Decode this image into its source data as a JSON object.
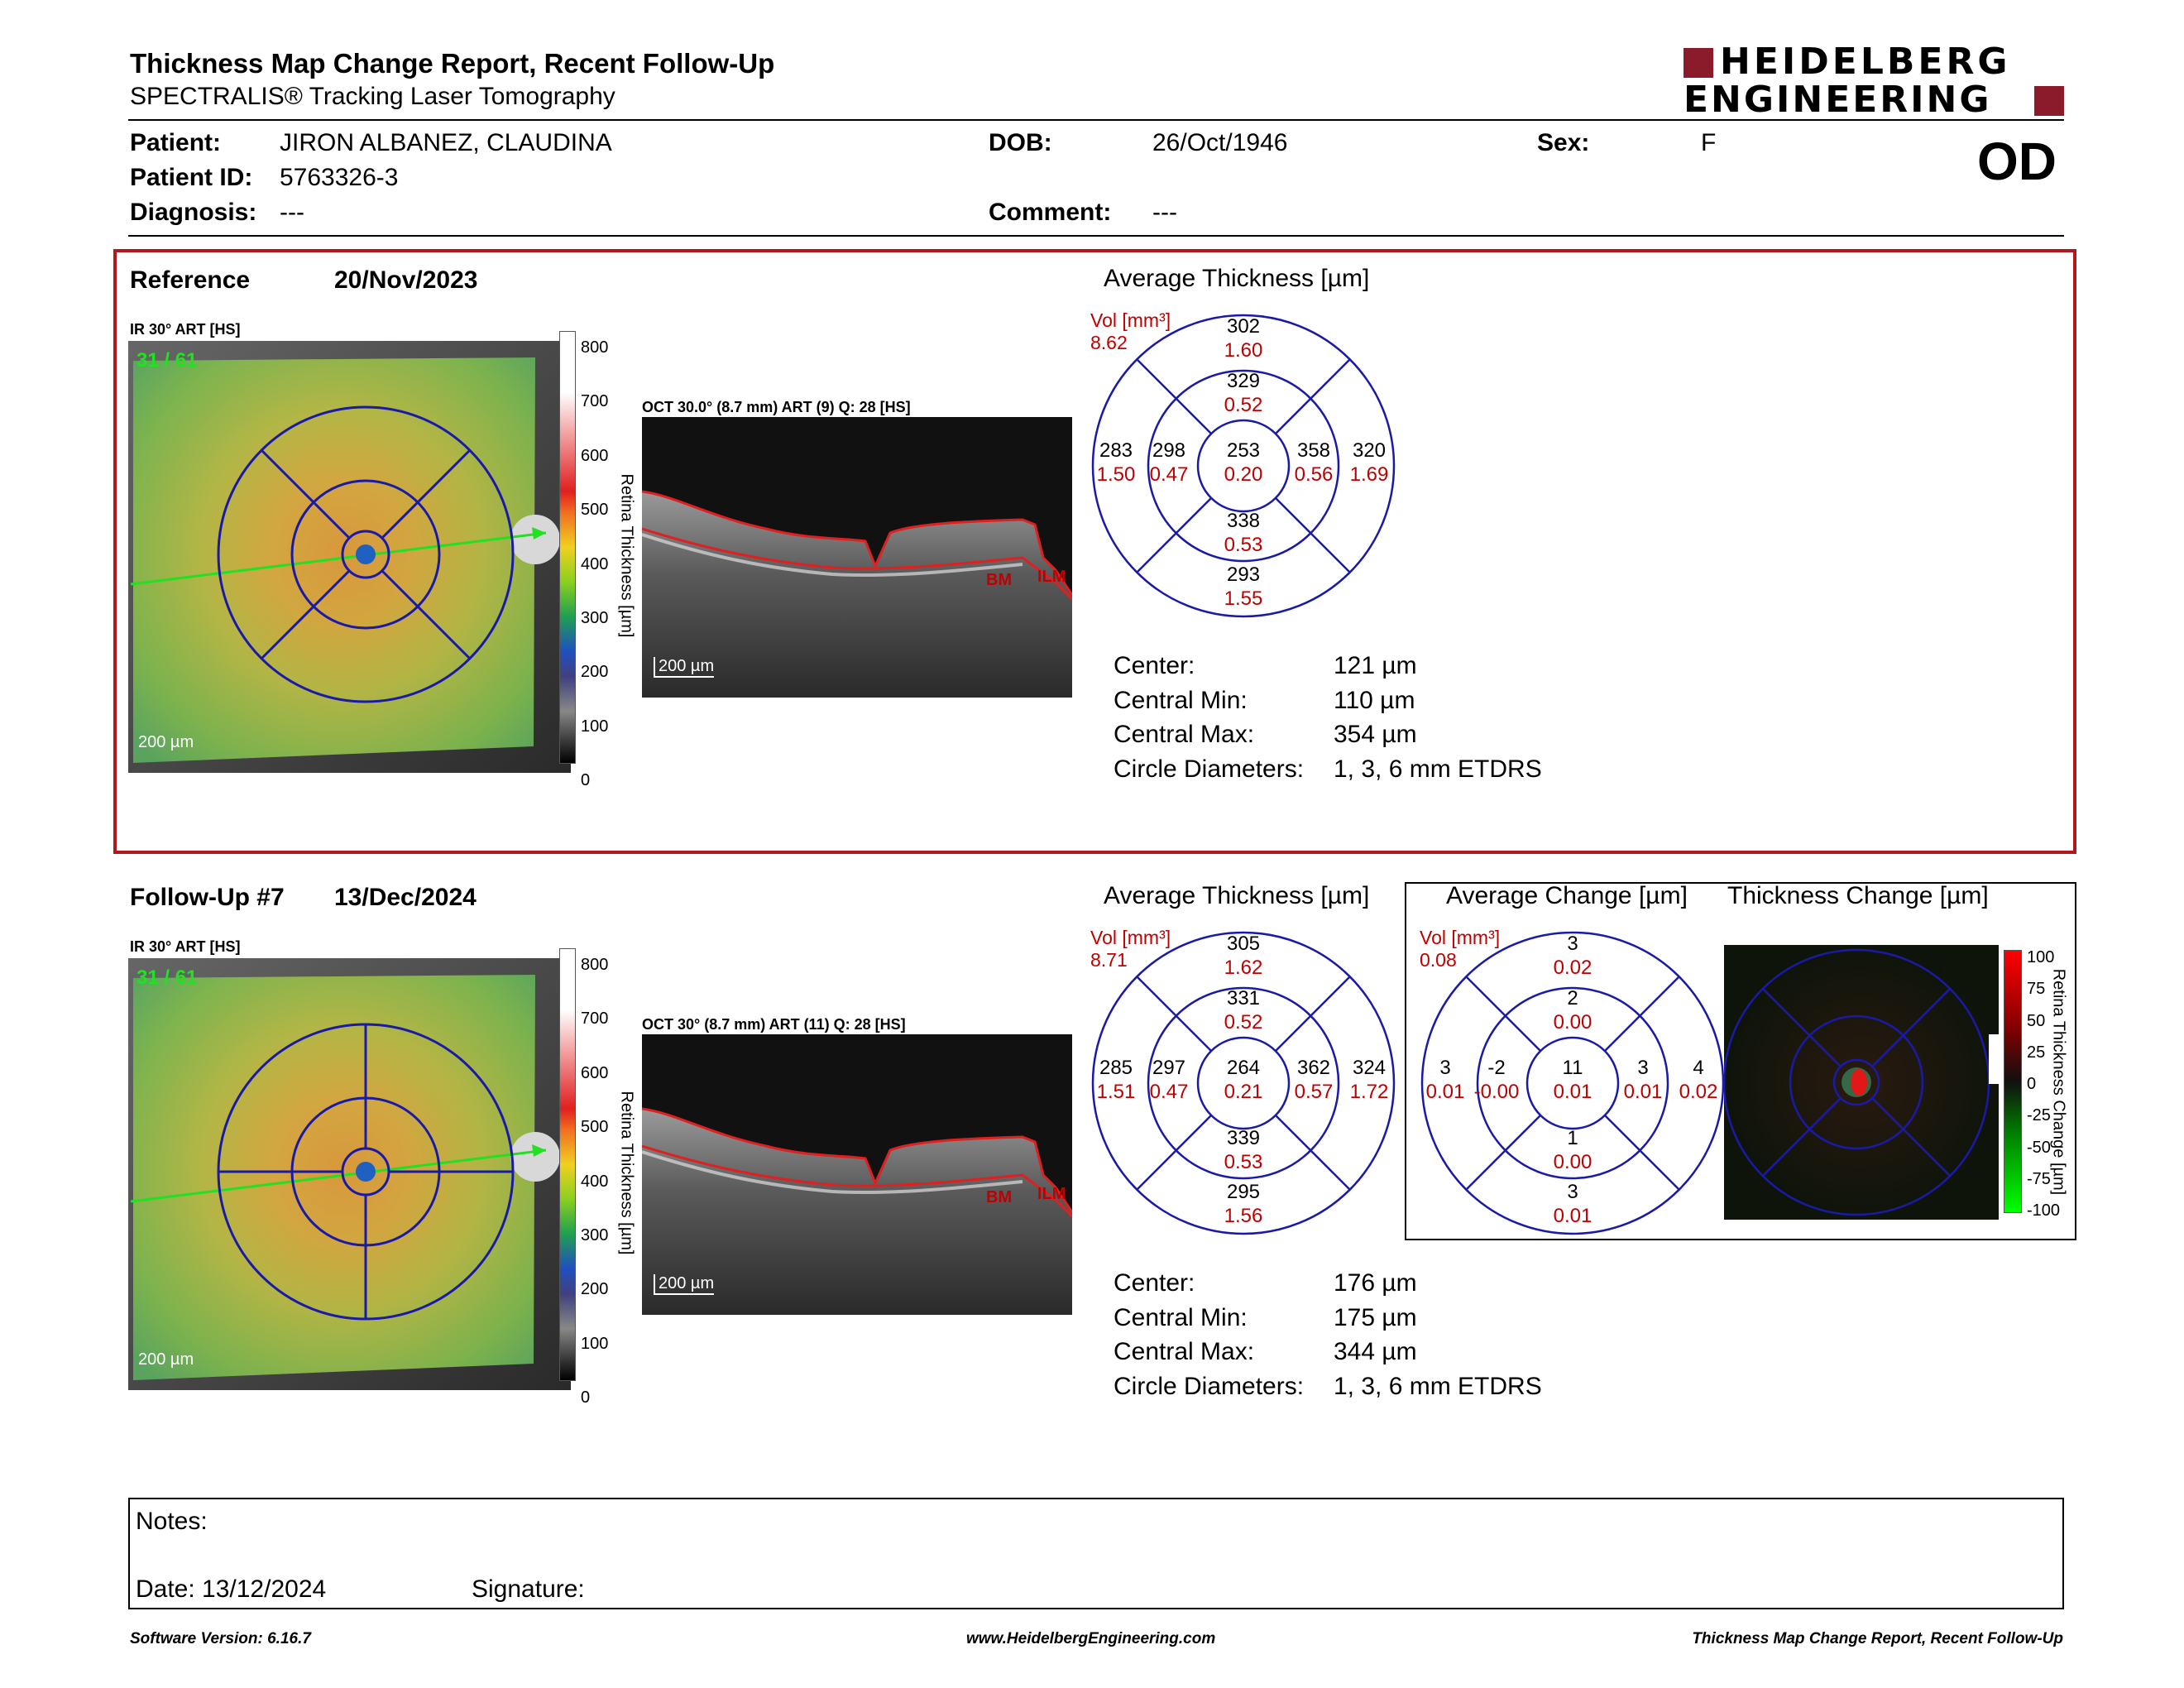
{
  "header": {
    "title": "Thickness Map Change Report, Recent Follow-Up",
    "subtitle": "SPECTRALIS® Tracking Laser Tomography",
    "logo_line1": "HEIDELBERG",
    "logo_line2": "ENGINEERING",
    "eye": "OD"
  },
  "patient": {
    "patient_label": "Patient:",
    "patient_value": "JIRON ALBANEZ, CLAUDINA",
    "dob_label": "DOB:",
    "dob_value": "26/Oct/1946",
    "sex_label": "Sex:",
    "sex_value": "F",
    "id_label": "Patient ID:",
    "id_value": "5763326-3",
    "diag_label": "Diagnosis:",
    "diag_value": "---",
    "comment_label": "Comment:",
    "comment_value": "---"
  },
  "reference": {
    "label": "Reference",
    "date": "20/Nov/2023",
    "ir_label": "IR 30° ART [HS]",
    "counter": "31 / 61",
    "scale": "200 µm",
    "oct_label": "OCT 30.0° (8.7 mm) ART (9) Q: 28 [HS]",
    "oct_scale": "200 µm",
    "bm": "BM",
    "ilm": "ILM",
    "colorbar_title": "Retina Thickness [µm]",
    "colorbar_ticks": [
      "800",
      "700",
      "600",
      "500",
      "400",
      "300",
      "200",
      "100",
      "0"
    ],
    "avg_title": "Average Thickness [µm]",
    "vol_label": "Vol [mm³]",
    "vol_value": "8.62",
    "grid": {
      "outer_sup": "302",
      "outer_sup_v": "1.60",
      "inner_sup": "329",
      "inner_sup_v": "0.52",
      "outer_nas": "283",
      "outer_nas_v": "1.50",
      "inner_nas": "298",
      "inner_nas_v": "0.47",
      "center": "253",
      "center_v": "0.20",
      "inner_tmp": "358",
      "inner_tmp_v": "0.56",
      "outer_tmp": "320",
      "outer_tmp_v": "1.69",
      "inner_inf": "338",
      "inner_inf_v": "0.53",
      "outer_inf": "293",
      "outer_inf_v": "1.55"
    },
    "stats": [
      {
        "label": "Center:",
        "value": "121 µm"
      },
      {
        "label": "Central Min:",
        "value": "110 µm"
      },
      {
        "label": "Central Max:",
        "value": "354 µm"
      },
      {
        "label": "Circle Diameters:",
        "value": "1, 3, 6 mm ETDRS"
      }
    ]
  },
  "followup": {
    "label": "Follow-Up #7",
    "date": "13/Dec/2024",
    "ir_label": "IR 30° ART [HS]",
    "counter": "31 / 61",
    "scale": "200 µm",
    "oct_label": "OCT 30° (8.7 mm) ART (11) Q: 28 [HS]",
    "oct_scale": "200 µm",
    "bm": "BM",
    "ilm": "ILM",
    "colorbar_title": "Retina Thickness [µm]",
    "colorbar_ticks": [
      "800",
      "700",
      "600",
      "500",
      "400",
      "300",
      "200",
      "100",
      "0"
    ],
    "avg_title": "Average Thickness [µm]",
    "vol_label": "Vol [mm³]",
    "vol_value": "8.71",
    "grid": {
      "outer_sup": "305",
      "outer_sup_v": "1.62",
      "inner_sup": "331",
      "inner_sup_v": "0.52",
      "outer_nas": "285",
      "outer_nas_v": "1.51",
      "inner_nas": "297",
      "inner_nas_v": "0.47",
      "center": "264",
      "center_v": "0.21",
      "inner_tmp": "362",
      "inner_tmp_v": "0.57",
      "outer_tmp": "324",
      "outer_tmp_v": "1.72",
      "inner_inf": "339",
      "inner_inf_v": "0.53",
      "outer_inf": "295",
      "outer_inf_v": "1.56"
    },
    "stats": [
      {
        "label": "Center:",
        "value": "176 µm"
      },
      {
        "label": "Central Min:",
        "value": "175 µm"
      },
      {
        "label": "Central Max:",
        "value": "344 µm"
      },
      {
        "label": "Circle Diameters:",
        "value": "1, 3, 6 mm ETDRS"
      }
    ],
    "change_title": "Average Change [µm]",
    "change_vol_label": "Vol [mm³]",
    "change_vol_value": "0.08",
    "change_grid": {
      "outer_sup": "3",
      "outer_sup_v": "0.02",
      "inner_sup": "2",
      "inner_sup_v": "0.00",
      "outer_nas": "3",
      "outer_nas_v": "0.01",
      "inner_nas": "-2",
      "inner_nas_v": "-0.00",
      "center": "11",
      "center_v": "0.01",
      "inner_tmp": "3",
      "inner_tmp_v": "0.01",
      "outer_tmp": "4",
      "outer_tmp_v": "0.02",
      "inner_inf": "1",
      "inner_inf_v": "0.00",
      "outer_inf": "3",
      "outer_inf_v": "0.01"
    },
    "thickness_change_title": "Thickness Change [µm]",
    "change_colorbar_title": "Retina Thickness Change [µm]",
    "change_ticks": [
      "100",
      "75",
      "50",
      "25",
      "0",
      "-25",
      "-50",
      "-75",
      "-100"
    ]
  },
  "notes": {
    "notes_label": "Notes:",
    "date_label": "Date: 13/12/2024",
    "signature_label": "Signature:"
  },
  "footer": {
    "left": "Software Version: 6.16.7",
    "center": "www.HeidelbergEngineering.com",
    "right": "Thickness Map Change Report, Recent Follow-Up"
  },
  "colors": {
    "frame": "#b0181e",
    "logo": "#8b1a2b",
    "grid_circle": "#1a1aa8",
    "value_red": "#c00000"
  }
}
